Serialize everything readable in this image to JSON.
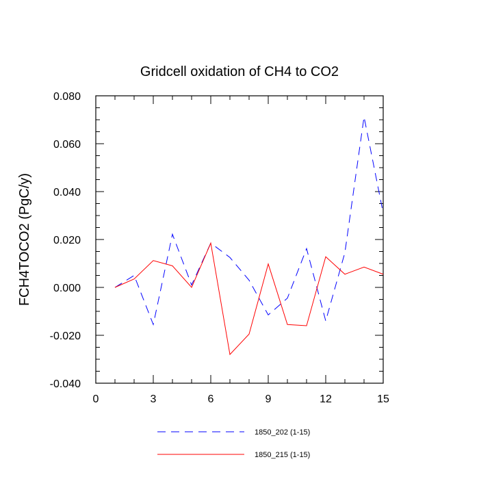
{
  "chart_data": {
    "type": "line",
    "title": "Gridcell oxidation of CH4 to CO2",
    "xlabel": "",
    "ylabel": "FCH4TOCO2  (PgC/y)",
    "xlim": [
      0,
      15
    ],
    "ylim": [
      -0.04,
      0.08
    ],
    "xticks": [
      0,
      3,
      6,
      9,
      12,
      15
    ],
    "xtick_labels": [
      "0",
      "3",
      "6",
      "9",
      "12",
      "15"
    ],
    "yticks": [
      -0.04,
      -0.02,
      0.0,
      0.02,
      0.04,
      0.06,
      0.08
    ],
    "ytick_labels": [
      "-0.040",
      "-0.020",
      "0.000",
      "0.020",
      "0.040",
      "0.060",
      "0.080"
    ],
    "x": [
      1,
      2,
      3,
      4,
      5,
      6,
      7,
      8,
      9,
      10,
      11,
      12,
      13,
      14,
      15
    ],
    "series": [
      {
        "name": "1850_202 (1-15)",
        "color": "#0000ff",
        "style": "dashed",
        "values": [
          0.0,
          0.005,
          -0.0155,
          0.0222,
          0.001,
          0.0185,
          0.0125,
          0.003,
          -0.0115,
          -0.0045,
          0.0162,
          -0.014,
          0.0145,
          0.0712,
          0.031
        ]
      },
      {
        "name": "1850_215 (1-15)",
        "color": "#ff0000",
        "style": "solid",
        "values": [
          0.0,
          0.0035,
          0.0112,
          0.009,
          0.0,
          0.0185,
          -0.028,
          -0.0195,
          0.0098,
          -0.0155,
          -0.016,
          0.0128,
          0.0055,
          0.0085,
          0.0055
        ]
      }
    ],
    "grid": false,
    "legend_position": "bottom"
  }
}
